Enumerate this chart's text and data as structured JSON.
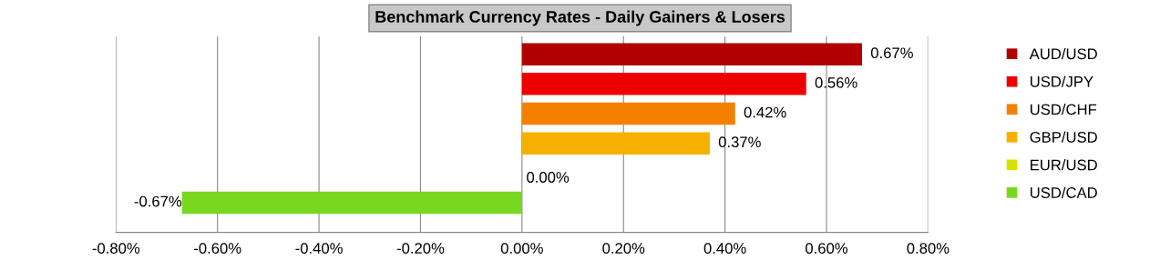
{
  "chart_data": {
    "type": "bar",
    "orientation": "horizontal",
    "title": "Benchmark Currency Rates - Daily Gainers & Losers",
    "categories": [
      null,
      null,
      null,
      null,
      null,
      null
    ],
    "series": [
      {
        "name": "AUD/USD",
        "color": "#b00000",
        "values": [
          0.67,
          null,
          null,
          null,
          null,
          null
        ],
        "value_labels": [
          "0.67%",
          null,
          null,
          null,
          null,
          null
        ]
      },
      {
        "name": "USD/JPY",
        "color": "#ee0000",
        "values": [
          null,
          0.56,
          null,
          null,
          null,
          null
        ],
        "value_labels": [
          null,
          "0.56%",
          null,
          null,
          null,
          null
        ]
      },
      {
        "name": "USD/CHF",
        "color": "#f58000",
        "values": [
          null,
          null,
          0.42,
          null,
          null,
          null
        ],
        "value_labels": [
          null,
          null,
          "0.42%",
          null,
          null,
          null
        ]
      },
      {
        "name": "GBP/USD",
        "color": "#f8b000",
        "values": [
          null,
          null,
          null,
          0.37,
          null,
          null
        ],
        "value_labels": [
          null,
          null,
          null,
          "0.37%",
          null,
          null
        ]
      },
      {
        "name": "EUR/USD",
        "color": "#d8e000",
        "values": [
          null,
          null,
          null,
          null,
          0.0,
          null
        ],
        "value_labels": [
          null,
          null,
          null,
          null,
          "0.00%",
          null
        ]
      },
      {
        "name": "USD/CAD",
        "color": "#78d820",
        "values": [
          null,
          null,
          null,
          null,
          null,
          -0.67
        ],
        "value_labels": [
          null,
          null,
          null,
          null,
          null,
          "-0.67%"
        ]
      }
    ],
    "xlim": [
      -0.8,
      0.8
    ],
    "xticks": [
      {
        "value": -0.8,
        "label": "-0.80%"
      },
      {
        "value": -0.6,
        "label": "-0.60%"
      },
      {
        "value": -0.4,
        "label": "-0.40%"
      },
      {
        "value": -0.2,
        "label": "-0.20%"
      },
      {
        "value": 0.0,
        "label": "0.00%"
      },
      {
        "value": 0.2,
        "label": "0.20%"
      },
      {
        "value": 0.4,
        "label": "0.40%"
      },
      {
        "value": 0.6,
        "label": "0.60%"
      },
      {
        "value": 0.8,
        "label": "0.80%"
      }
    ],
    "grid": "x",
    "legend": "right"
  }
}
